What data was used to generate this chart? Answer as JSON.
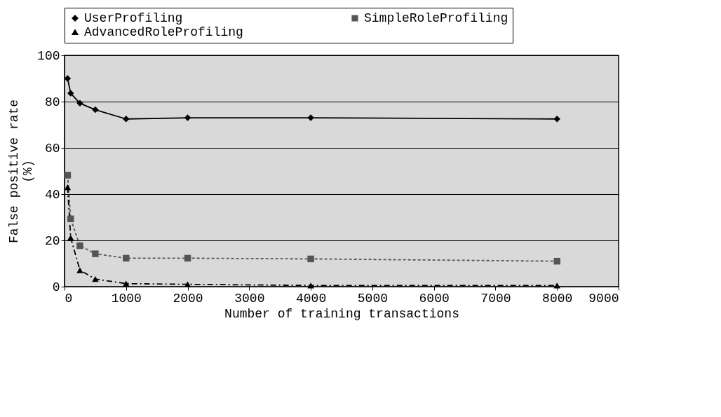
{
  "chart_data": {
    "type": "line",
    "xlabel": "Number of training transactions",
    "ylabel": "False positive rate (%)",
    "x": [
      50,
      100,
      250,
      500,
      1000,
      2000,
      4000,
      8000
    ],
    "series": [
      {
        "name": "UserProfiling",
        "color": "#000000",
        "marker": "diamond",
        "line_style": "solid",
        "values": [
          90,
          83.6,
          79.3,
          76.5,
          72.5,
          73,
          73,
          72.5
        ]
      },
      {
        "name": "SimpleRoleProfiling",
        "color": "#555555",
        "marker": "square",
        "line_style": "dotted",
        "values": [
          48.2,
          29.3,
          17.7,
          14.2,
          12.3,
          12.3,
          12,
          11
        ]
      },
      {
        "name": "AdvancedRoleProfiling",
        "color": "#000000",
        "marker": "triangle",
        "line_style": "dashed",
        "values": [
          43,
          21.2,
          7.1,
          3.3,
          1.3,
          1,
          0.5,
          0.5
        ]
      }
    ],
    "xlim": [
      0,
      9000
    ],
    "xticks": [
      0,
      1000,
      2000,
      3000,
      4000,
      5000,
      6000,
      7000,
      8000,
      9000
    ],
    "ylim": [
      0,
      100
    ],
    "yticks": [
      0,
      20,
      40,
      60,
      80,
      100
    ],
    "grid": "y",
    "legend": "top"
  }
}
